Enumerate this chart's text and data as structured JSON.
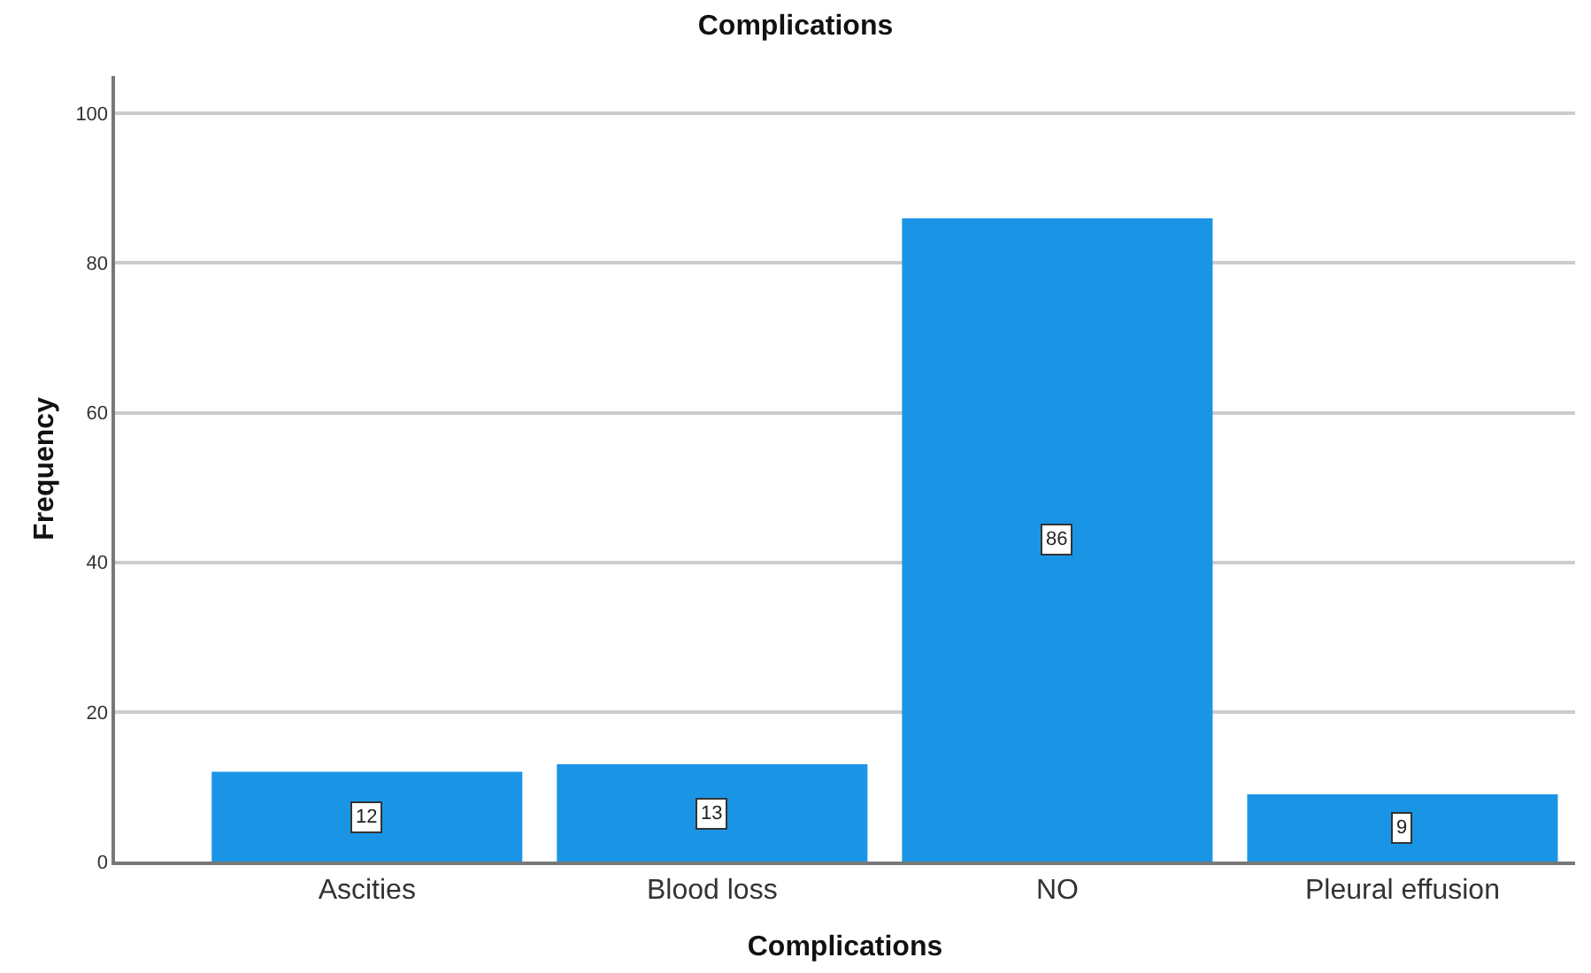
{
  "chart_data": {
    "type": "bar",
    "title": "Complications",
    "xlabel": "Complications",
    "ylabel": "Frequency",
    "categories": [
      "Ascities",
      "Blood loss",
      "NO",
      "Pleural effusion"
    ],
    "values": [
      12,
      13,
      86,
      9
    ],
    "color": "#1a95e6",
    "ylim": [
      0,
      105
    ],
    "yticks": [
      0,
      20,
      40,
      60,
      80,
      100
    ],
    "grid": "y",
    "data_labels": true
  }
}
